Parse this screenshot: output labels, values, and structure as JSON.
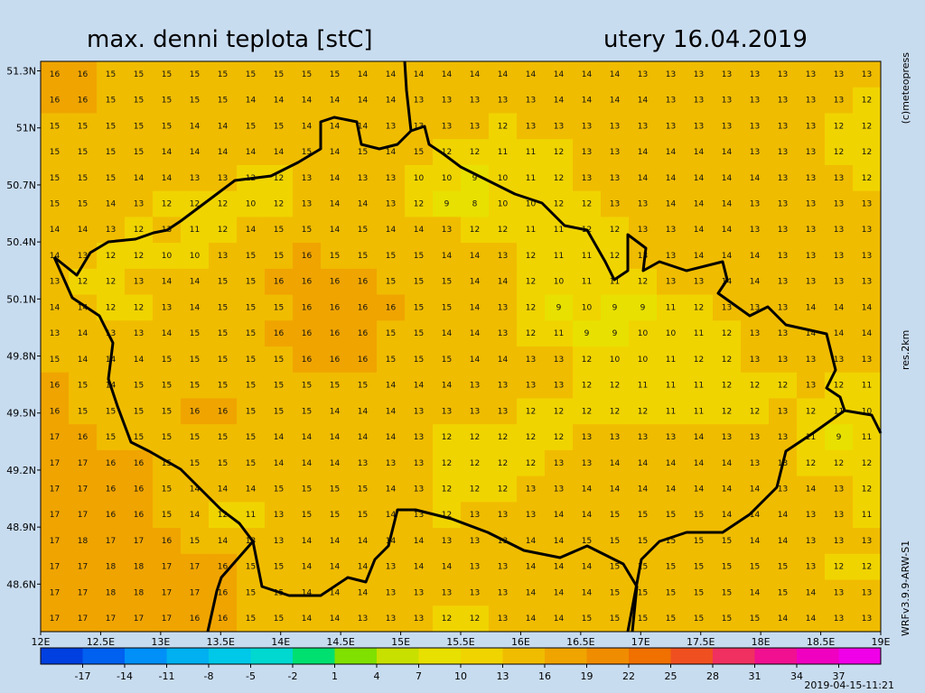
{
  "header": {
    "title": "max. denni teplota [stC]",
    "date": "utery 16.04.2019"
  },
  "side_texts": {
    "copyright": "(c)meteopress",
    "resolution": "res.2km",
    "model": "WRFv3.9.9-ARW-S1"
  },
  "timestamp": "2019-04-15-11:21",
  "map": {
    "xlim": [
      12,
      19
    ],
    "ylim": [
      48.35,
      51.35
    ],
    "xticks": [
      {
        "value": 12,
        "label": "12E"
      },
      {
        "value": 12.5,
        "label": "12.5E"
      },
      {
        "value": 13,
        "label": "13E"
      },
      {
        "value": 13.5,
        "label": "13.5E"
      },
      {
        "value": 14,
        "label": "14E"
      },
      {
        "value": 14.5,
        "label": "14.5E"
      },
      {
        "value": 15,
        "label": "15E"
      },
      {
        "value": 15.5,
        "label": "15.5E"
      },
      {
        "value": 16,
        "label": "16E"
      },
      {
        "value": 16.5,
        "label": "16.5E"
      },
      {
        "value": 17,
        "label": "17E"
      },
      {
        "value": 17.5,
        "label": "17.5E"
      },
      {
        "value": 18,
        "label": "18E"
      },
      {
        "value": 18.5,
        "label": "18.5E"
      },
      {
        "value": 19,
        "label": "19E"
      }
    ],
    "yticks": [
      {
        "value": 51.3,
        "label": "51.3N"
      },
      {
        "value": 51,
        "label": "51N"
      },
      {
        "value": 50.7,
        "label": "50.7N"
      },
      {
        "value": 50.4,
        "label": "50.4N"
      },
      {
        "value": 50.1,
        "label": "50.1N"
      },
      {
        "value": 49.8,
        "label": "49.8N"
      },
      {
        "value": 49.5,
        "label": "49.5N"
      },
      {
        "value": 49.2,
        "label": "49.2N"
      },
      {
        "value": 48.9,
        "label": "48.9N"
      },
      {
        "value": 48.6,
        "label": "48.6N"
      }
    ],
    "grid": [
      [
        16,
        16,
        15,
        15,
        15,
        15,
        15,
        15,
        15,
        15,
        15,
        14,
        14,
        14,
        14,
        14,
        14,
        14,
        14,
        14,
        14,
        13,
        13,
        13,
        13,
        13,
        13,
        13,
        13,
        13
      ],
      [
        16,
        16,
        15,
        15,
        15,
        15,
        15,
        14,
        14,
        14,
        14,
        14,
        14,
        13,
        13,
        13,
        13,
        13,
        14,
        14,
        14,
        14,
        13,
        13,
        13,
        13,
        13,
        13,
        13,
        12
      ],
      [
        15,
        15,
        15,
        15,
        15,
        14,
        14,
        15,
        15,
        14,
        14,
        14,
        13,
        13,
        13,
        13,
        12,
        13,
        13,
        13,
        13,
        13,
        13,
        13,
        13,
        13,
        13,
        13,
        12,
        12
      ],
      [
        15,
        15,
        15,
        15,
        14,
        14,
        14,
        14,
        14,
        15,
        14,
        15,
        14,
        15,
        12,
        12,
        11,
        11,
        12,
        13,
        13,
        14,
        14,
        14,
        14,
        13,
        13,
        13,
        12,
        12
      ],
      [
        15,
        15,
        15,
        14,
        14,
        13,
        13,
        12,
        12,
        13,
        14,
        13,
        13,
        10,
        10,
        9,
        10,
        11,
        12,
        13,
        13,
        14,
        14,
        14,
        14,
        14,
        13,
        13,
        13,
        12
      ],
      [
        15,
        15,
        14,
        13,
        12,
        12,
        12,
        10,
        12,
        13,
        14,
        14,
        13,
        12,
        9,
        8,
        10,
        10,
        12,
        12,
        13,
        13,
        14,
        14,
        14,
        13,
        13,
        13,
        13,
        13
      ],
      [
        14,
        14,
        13,
        12,
        13,
        11,
        12,
        14,
        15,
        15,
        14,
        15,
        14,
        14,
        13,
        12,
        12,
        11,
        11,
        12,
        12,
        13,
        13,
        14,
        14,
        13,
        13,
        13,
        13,
        13
      ],
      [
        14,
        13,
        12,
        12,
        10,
        10,
        13,
        15,
        15,
        16,
        15,
        15,
        15,
        15,
        14,
        14,
        13,
        12,
        11,
        11,
        12,
        13,
        13,
        14,
        14,
        14,
        13,
        13,
        13,
        13
      ],
      [
        13,
        12,
        12,
        13,
        14,
        14,
        15,
        15,
        16,
        16,
        16,
        16,
        15,
        15,
        15,
        14,
        14,
        12,
        10,
        11,
        11,
        12,
        13,
        13,
        14,
        14,
        13,
        13,
        13,
        13
      ],
      [
        14,
        14,
        12,
        12,
        13,
        14,
        15,
        15,
        15,
        16,
        16,
        16,
        16,
        15,
        15,
        14,
        13,
        12,
        9,
        10,
        9,
        9,
        11,
        12,
        13,
        13,
        13,
        14,
        14,
        14
      ],
      [
        13,
        14,
        13,
        13,
        14,
        15,
        15,
        15,
        16,
        16,
        16,
        16,
        15,
        15,
        14,
        14,
        13,
        12,
        11,
        9,
        9,
        10,
        10,
        11,
        12,
        13,
        13,
        14,
        14,
        14
      ],
      [
        15,
        14,
        14,
        14,
        15,
        15,
        15,
        15,
        15,
        16,
        16,
        16,
        15,
        15,
        15,
        14,
        14,
        13,
        13,
        12,
        10,
        10,
        11,
        12,
        12,
        13,
        13,
        13,
        13,
        13
      ],
      [
        16,
        15,
        14,
        15,
        15,
        15,
        15,
        15,
        15,
        15,
        15,
        15,
        14,
        14,
        14,
        13,
        13,
        13,
        13,
        12,
        12,
        11,
        11,
        11,
        12,
        12,
        12,
        13,
        12,
        11
      ],
      [
        16,
        15,
        15,
        15,
        15,
        16,
        16,
        15,
        15,
        15,
        14,
        14,
        14,
        13,
        13,
        13,
        13,
        12,
        12,
        12,
        12,
        12,
        11,
        11,
        12,
        12,
        13,
        12,
        11,
        10
      ],
      [
        17,
        16,
        15,
        15,
        15,
        15,
        15,
        15,
        14,
        14,
        14,
        14,
        14,
        13,
        12,
        12,
        12,
        12,
        12,
        13,
        13,
        13,
        13,
        14,
        13,
        13,
        13,
        11,
        9,
        11
      ],
      [
        17,
        17,
        16,
        16,
        15,
        15,
        15,
        15,
        14,
        14,
        14,
        13,
        13,
        13,
        12,
        12,
        12,
        12,
        13,
        13,
        14,
        14,
        14,
        14,
        14,
        13,
        13,
        12,
        12,
        12
      ],
      [
        17,
        17,
        16,
        16,
        15,
        14,
        14,
        14,
        15,
        15,
        15,
        15,
        14,
        13,
        12,
        12,
        12,
        13,
        13,
        14,
        14,
        14,
        14,
        14,
        14,
        14,
        13,
        14,
        13,
        12
      ],
      [
        17,
        17,
        16,
        16,
        15,
        14,
        12,
        11,
        13,
        15,
        15,
        15,
        14,
        13,
        12,
        13,
        13,
        13,
        14,
        14,
        15,
        15,
        15,
        15,
        14,
        14,
        14,
        13,
        13,
        11
      ],
      [
        17,
        18,
        17,
        17,
        16,
        15,
        14,
        13,
        13,
        14,
        14,
        14,
        14,
        14,
        13,
        13,
        13,
        14,
        14,
        15,
        15,
        15,
        15,
        15,
        15,
        14,
        14,
        13,
        13,
        13
      ],
      [
        17,
        17,
        18,
        18,
        17,
        17,
        16,
        15,
        15,
        14,
        14,
        14,
        13,
        14,
        14,
        13,
        13,
        14,
        14,
        14,
        15,
        15,
        15,
        15,
        15,
        15,
        15,
        13,
        12,
        12
      ],
      [
        17,
        17,
        18,
        18,
        17,
        17,
        16,
        15,
        15,
        14,
        14,
        14,
        13,
        13,
        13,
        13,
        13,
        14,
        14,
        14,
        15,
        15,
        15,
        15,
        15,
        14,
        15,
        14,
        13,
        13
      ],
      [
        17,
        17,
        17,
        17,
        17,
        16,
        16,
        15,
        15,
        14,
        14,
        13,
        13,
        13,
        12,
        12,
        13,
        14,
        14,
        15,
        15,
        15,
        15,
        15,
        15,
        15,
        14,
        14,
        13,
        13
      ]
    ]
  },
  "colorbar": {
    "lim": [
      -20,
      40
    ],
    "ticks": [
      -17,
      -14,
      -11,
      -8,
      -5,
      -2,
      1,
      4,
      7,
      10,
      13,
      16,
      19,
      22,
      25,
      28,
      31,
      34,
      37
    ],
    "bounds": [
      -20,
      -17,
      -14,
      -11,
      -8,
      -5,
      -2,
      1,
      4,
      7,
      10,
      13,
      16,
      19,
      22,
      25,
      28,
      31,
      34,
      37,
      40
    ],
    "colors": [
      "#0040e0",
      "#0060f0",
      "#0090f8",
      "#00b0f0",
      "#00c8e8",
      "#00d8d0",
      "#00e070",
      "#80e000",
      "#c8e000",
      "#e8e000",
      "#f0d400",
      "#f0bc00",
      "#f0a400",
      "#f08c00",
      "#f07000",
      "#f05020",
      "#f03060",
      "#f01090",
      "#f000c0",
      "#f000e8"
    ]
  }
}
